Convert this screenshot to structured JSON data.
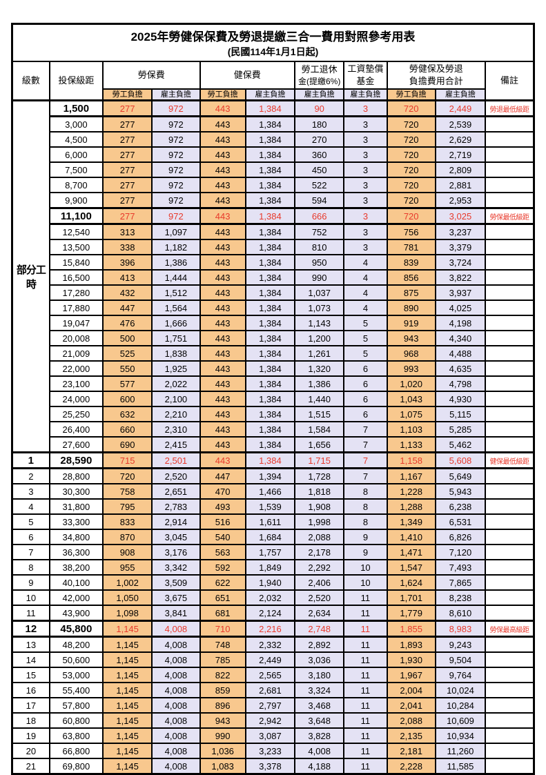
{
  "title": "2025年勞健保保費及勞退提繳三合一費用對照參考用表",
  "subtitle": "(民國114年1月1日起)",
  "colors": {
    "employee_share_bg": "#F8C88E",
    "employer_share_bg": "#E4E2F4",
    "highlight_text": "#E8392B",
    "border": "#000000",
    "background": "#FFFFFF"
  },
  "header": {
    "level": "級數",
    "bracket": "投保級距",
    "labor_ins": "勞保費",
    "health_ins": "健保費",
    "pension_line1": "勞工退休",
    "pension_line2": "金(提繳6%)",
    "wage_fund_line1": "工資墊償",
    "wage_fund_line2": "基金",
    "total_line1": "勞健保及勞退",
    "total_line2": "負擔費用合計",
    "note": "備註",
    "employee_share": "勞工負擔",
    "employer_share": "雇主負擔"
  },
  "part_time_label": "部分工時",
  "part_time_rowspan": 23,
  "value_column_kinds": [
    "emp",
    "er",
    "emp",
    "er",
    "er",
    "er",
    "emp",
    "er"
  ],
  "rows": [
    {
      "level": "",
      "bracket": "1,500",
      "values": [
        "277",
        "972",
        "443",
        "1,384",
        "90",
        "3",
        "720",
        "2,449"
      ],
      "note": "勞退最低級距",
      "red": true,
      "emph": true
    },
    {
      "level": "",
      "bracket": "3,000",
      "values": [
        "277",
        "972",
        "443",
        "1,384",
        "180",
        "3",
        "720",
        "2,539"
      ],
      "note": "",
      "red": false,
      "emph": false
    },
    {
      "level": "",
      "bracket": "4,500",
      "values": [
        "277",
        "972",
        "443",
        "1,384",
        "270",
        "3",
        "720",
        "2,629"
      ],
      "note": "",
      "red": false,
      "emph": false
    },
    {
      "level": "",
      "bracket": "6,000",
      "values": [
        "277",
        "972",
        "443",
        "1,384",
        "360",
        "3",
        "720",
        "2,719"
      ],
      "note": "",
      "red": false,
      "emph": false
    },
    {
      "level": "",
      "bracket": "7,500",
      "values": [
        "277",
        "972",
        "443",
        "1,384",
        "450",
        "3",
        "720",
        "2,809"
      ],
      "note": "",
      "red": false,
      "emph": false
    },
    {
      "level": "",
      "bracket": "8,700",
      "values": [
        "277",
        "972",
        "443",
        "1,384",
        "522",
        "3",
        "720",
        "2,881"
      ],
      "note": "",
      "red": false,
      "emph": false
    },
    {
      "level": "",
      "bracket": "9,900",
      "values": [
        "277",
        "972",
        "443",
        "1,384",
        "594",
        "3",
        "720",
        "2,953"
      ],
      "note": "",
      "red": false,
      "emph": false
    },
    {
      "level": "",
      "bracket": "11,100",
      "values": [
        "277",
        "972",
        "443",
        "1,384",
        "666",
        "3",
        "720",
        "3,025"
      ],
      "note": "勞保最低級距",
      "red": true,
      "emph": true
    },
    {
      "level": "",
      "bracket": "12,540",
      "values": [
        "313",
        "1,097",
        "443",
        "1,384",
        "752",
        "3",
        "756",
        "3,237"
      ],
      "note": "",
      "red": false,
      "emph": false
    },
    {
      "level": "",
      "bracket": "13,500",
      "values": [
        "338",
        "1,182",
        "443",
        "1,384",
        "810",
        "3",
        "781",
        "3,379"
      ],
      "note": "",
      "red": false,
      "emph": false
    },
    {
      "level": "",
      "bracket": "15,840",
      "values": [
        "396",
        "1,386",
        "443",
        "1,384",
        "950",
        "4",
        "839",
        "3,724"
      ],
      "note": "",
      "red": false,
      "emph": false
    },
    {
      "level": "",
      "bracket": "16,500",
      "values": [
        "413",
        "1,444",
        "443",
        "1,384",
        "990",
        "4",
        "856",
        "3,822"
      ],
      "note": "",
      "red": false,
      "emph": false
    },
    {
      "level": "",
      "bracket": "17,280",
      "values": [
        "432",
        "1,512",
        "443",
        "1,384",
        "1,037",
        "4",
        "875",
        "3,937"
      ],
      "note": "",
      "red": false,
      "emph": false
    },
    {
      "level": "",
      "bracket": "17,880",
      "values": [
        "447",
        "1,564",
        "443",
        "1,384",
        "1,073",
        "4",
        "890",
        "4,025"
      ],
      "note": "",
      "red": false,
      "emph": false
    },
    {
      "level": "",
      "bracket": "19,047",
      "values": [
        "476",
        "1,666",
        "443",
        "1,384",
        "1,143",
        "5",
        "919",
        "4,198"
      ],
      "note": "",
      "red": false,
      "emph": false
    },
    {
      "level": "",
      "bracket": "20,008",
      "values": [
        "500",
        "1,751",
        "443",
        "1,384",
        "1,200",
        "5",
        "943",
        "4,340"
      ],
      "note": "",
      "red": false,
      "emph": false
    },
    {
      "level": "",
      "bracket": "21,009",
      "values": [
        "525",
        "1,838",
        "443",
        "1,384",
        "1,261",
        "5",
        "968",
        "4,488"
      ],
      "note": "",
      "red": false,
      "emph": false
    },
    {
      "level": "",
      "bracket": "22,000",
      "values": [
        "550",
        "1,925",
        "443",
        "1,384",
        "1,320",
        "6",
        "993",
        "4,635"
      ],
      "note": "",
      "red": false,
      "emph": false
    },
    {
      "level": "",
      "bracket": "23,100",
      "values": [
        "577",
        "2,022",
        "443",
        "1,384",
        "1,386",
        "6",
        "1,020",
        "4,798"
      ],
      "note": "",
      "red": false,
      "emph": false
    },
    {
      "level": "",
      "bracket": "24,000",
      "values": [
        "600",
        "2,100",
        "443",
        "1,384",
        "1,440",
        "6",
        "1,043",
        "4,930"
      ],
      "note": "",
      "red": false,
      "emph": false
    },
    {
      "level": "",
      "bracket": "25,250",
      "values": [
        "632",
        "2,210",
        "443",
        "1,384",
        "1,515",
        "6",
        "1,075",
        "5,115"
      ],
      "note": "",
      "red": false,
      "emph": false
    },
    {
      "level": "",
      "bracket": "26,400",
      "values": [
        "660",
        "2,310",
        "443",
        "1,384",
        "1,584",
        "7",
        "1,103",
        "5,285"
      ],
      "note": "",
      "red": false,
      "emph": false
    },
    {
      "level": "",
      "bracket": "27,600",
      "values": [
        "690",
        "2,415",
        "443",
        "1,384",
        "1,656",
        "7",
        "1,133",
        "5,462"
      ],
      "note": "",
      "red": false,
      "emph": false
    },
    {
      "level": "1",
      "bracket": "28,590",
      "values": [
        "715",
        "2,501",
        "443",
        "1,384",
        "1,715",
        "7",
        "1,158",
        "5,608"
      ],
      "note": "健保最低級距",
      "red": true,
      "emph": true
    },
    {
      "level": "2",
      "bracket": "28,800",
      "values": [
        "720",
        "2,520",
        "447",
        "1,394",
        "1,728",
        "7",
        "1,167",
        "5,649"
      ],
      "note": "",
      "red": false,
      "emph": false
    },
    {
      "level": "3",
      "bracket": "30,300",
      "values": [
        "758",
        "2,651",
        "470",
        "1,466",
        "1,818",
        "8",
        "1,228",
        "5,943"
      ],
      "note": "",
      "red": false,
      "emph": false
    },
    {
      "level": "4",
      "bracket": "31,800",
      "values": [
        "795",
        "2,783",
        "493",
        "1,539",
        "1,908",
        "8",
        "1,288",
        "6,238"
      ],
      "note": "",
      "red": false,
      "emph": false
    },
    {
      "level": "5",
      "bracket": "33,300",
      "values": [
        "833",
        "2,914",
        "516",
        "1,611",
        "1,998",
        "8",
        "1,349",
        "6,531"
      ],
      "note": "",
      "red": false,
      "emph": false
    },
    {
      "level": "6",
      "bracket": "34,800",
      "values": [
        "870",
        "3,045",
        "540",
        "1,684",
        "2,088",
        "9",
        "1,410",
        "6,826"
      ],
      "note": "",
      "red": false,
      "emph": false
    },
    {
      "level": "7",
      "bracket": "36,300",
      "values": [
        "908",
        "3,176",
        "563",
        "1,757",
        "2,178",
        "9",
        "1,471",
        "7,120"
      ],
      "note": "",
      "red": false,
      "emph": false
    },
    {
      "level": "8",
      "bracket": "38,200",
      "values": [
        "955",
        "3,342",
        "592",
        "1,849",
        "2,292",
        "10",
        "1,547",
        "7,493"
      ],
      "note": "",
      "red": false,
      "emph": false
    },
    {
      "level": "9",
      "bracket": "40,100",
      "values": [
        "1,002",
        "3,509",
        "622",
        "1,940",
        "2,406",
        "10",
        "1,624",
        "7,865"
      ],
      "note": "",
      "red": false,
      "emph": false
    },
    {
      "level": "10",
      "bracket": "42,000",
      "values": [
        "1,050",
        "3,675",
        "651",
        "2,032",
        "2,520",
        "11",
        "1,701",
        "8,238"
      ],
      "note": "",
      "red": false,
      "emph": false
    },
    {
      "level": "11",
      "bracket": "43,900",
      "values": [
        "1,098",
        "3,841",
        "681",
        "2,124",
        "2,634",
        "11",
        "1,779",
        "8,610"
      ],
      "note": "",
      "red": false,
      "emph": false
    },
    {
      "level": "12",
      "bracket": "45,800",
      "values": [
        "1,145",
        "4,008",
        "710",
        "2,216",
        "2,748",
        "11",
        "1,855",
        "8,983"
      ],
      "note": "勞保最高級距",
      "red": true,
      "emph": true
    },
    {
      "level": "13",
      "bracket": "48,200",
      "values": [
        "1,145",
        "4,008",
        "748",
        "2,332",
        "2,892",
        "11",
        "1,893",
        "9,243"
      ],
      "note": "",
      "red": false,
      "emph": false
    },
    {
      "level": "14",
      "bracket": "50,600",
      "values": [
        "1,145",
        "4,008",
        "785",
        "2,449",
        "3,036",
        "11",
        "1,930",
        "9,504"
      ],
      "note": "",
      "red": false,
      "emph": false
    },
    {
      "level": "15",
      "bracket": "53,000",
      "values": [
        "1,145",
        "4,008",
        "822",
        "2,565",
        "3,180",
        "11",
        "1,967",
        "9,764"
      ],
      "note": "",
      "red": false,
      "emph": false
    },
    {
      "level": "16",
      "bracket": "55,400",
      "values": [
        "1,145",
        "4,008",
        "859",
        "2,681",
        "3,324",
        "11",
        "2,004",
        "10,024"
      ],
      "note": "",
      "red": false,
      "emph": false
    },
    {
      "level": "17",
      "bracket": "57,800",
      "values": [
        "1,145",
        "4,008",
        "896",
        "2,797",
        "3,468",
        "11",
        "2,041",
        "10,284"
      ],
      "note": "",
      "red": false,
      "emph": false
    },
    {
      "level": "18",
      "bracket": "60,800",
      "values": [
        "1,145",
        "4,008",
        "943",
        "2,942",
        "3,648",
        "11",
        "2,088",
        "10,609"
      ],
      "note": "",
      "red": false,
      "emph": false
    },
    {
      "level": "19",
      "bracket": "63,800",
      "values": [
        "1,145",
        "4,008",
        "990",
        "3,087",
        "3,828",
        "11",
        "2,135",
        "10,934"
      ],
      "note": "",
      "red": false,
      "emph": false
    },
    {
      "level": "20",
      "bracket": "66,800",
      "values": [
        "1,145",
        "4,008",
        "1,036",
        "3,233",
        "4,008",
        "11",
        "2,181",
        "11,260"
      ],
      "note": "",
      "red": false,
      "emph": false
    },
    {
      "level": "21",
      "bracket": "69,800",
      "values": [
        "1,145",
        "4,008",
        "1,083",
        "3,378",
        "4,188",
        "11",
        "2,228",
        "11,585"
      ],
      "note": "",
      "red": false,
      "emph": false
    }
  ]
}
